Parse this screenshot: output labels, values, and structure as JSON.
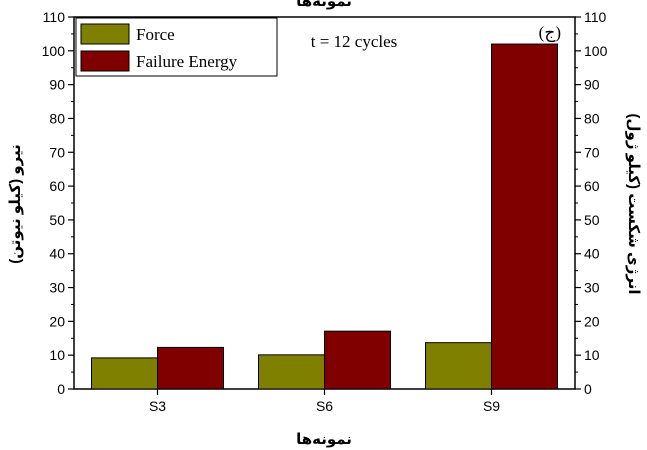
{
  "chart_data": {
    "type": "bar",
    "title": "نمونه‌ها",
    "categories": [
      "S3",
      "S6",
      "S9"
    ],
    "series": [
      {
        "name": "Force",
        "values": [
          9.2,
          10.1,
          13.7
        ],
        "color": "#808000"
      },
      {
        "name": "Failure Energy",
        "values": [
          12.3,
          17.1,
          102
        ],
        "color": "#800000"
      }
    ],
    "xlabel": "نمونه‌ها",
    "ylabel_left": "نیرو (کیلو نیوتن)",
    "ylabel_right": "انرژی شکست (کیلو ژول)",
    "ylim": [
      0,
      110
    ],
    "yticks": [
      0,
      10,
      20,
      30,
      40,
      50,
      60,
      70,
      80,
      90,
      100,
      110
    ],
    "annotation": "t = 12 cycles",
    "panel_label": "(ج)",
    "legend_position": "top-left",
    "grid": false
  }
}
